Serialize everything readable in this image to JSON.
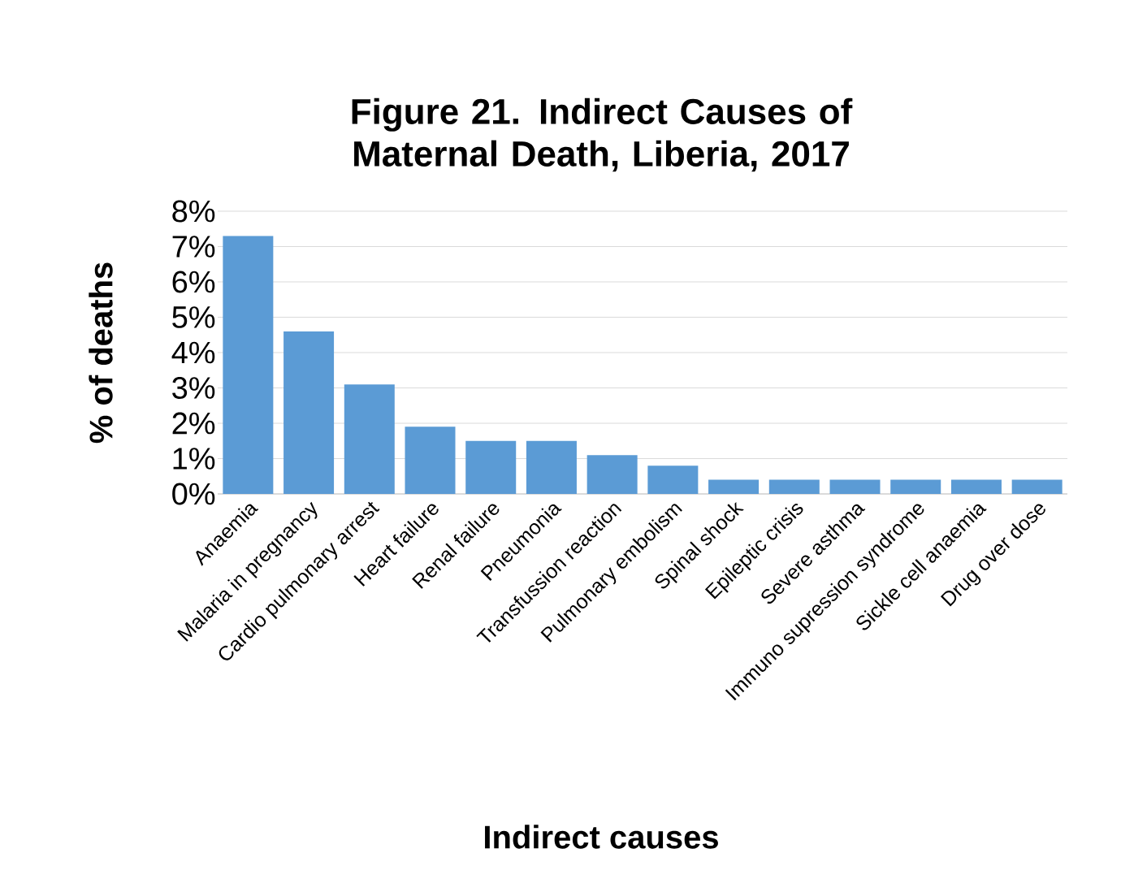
{
  "chart_data": {
    "type": "bar",
    "title": "Figure 21. Indirect Causes of Maternal Death, Liberia, 2017",
    "xlabel": "Indirect causes",
    "ylabel": "% of deaths",
    "categories": [
      "Anaemia",
      "Malaria in pregnancy",
      "Cardio pulmonary arrest",
      "Heart failure",
      "Renal failure",
      "Pneumonia",
      "Transfussion reaction",
      "Pulmonary embolism",
      "Spinal shock",
      "Epileptic crisis",
      "Severe asthma",
      "Immuno supression syndrome",
      "Sickle cell anaemia",
      "Drug over dose"
    ],
    "values": [
      7.3,
      4.6,
      3.1,
      1.9,
      1.5,
      1.5,
      1.1,
      0.8,
      0.4,
      0.4,
      0.4,
      0.4,
      0.4,
      0.4
    ],
    "color": "#5b9bd5",
    "ylim": [
      0,
      8
    ],
    "yticks": [
      {
        "value": 0,
        "label": "0%"
      },
      {
        "value": 1,
        "label": "1%"
      },
      {
        "value": 2,
        "label": "2%"
      },
      {
        "value": 3,
        "label": "3%"
      },
      {
        "value": 4,
        "label": "4%"
      },
      {
        "value": 5,
        "label": "5%"
      },
      {
        "value": 6,
        "label": "6%"
      },
      {
        "value": 7,
        "label": "7%"
      },
      {
        "value": 8,
        "label": "8%"
      }
    ],
    "grid": "y"
  }
}
